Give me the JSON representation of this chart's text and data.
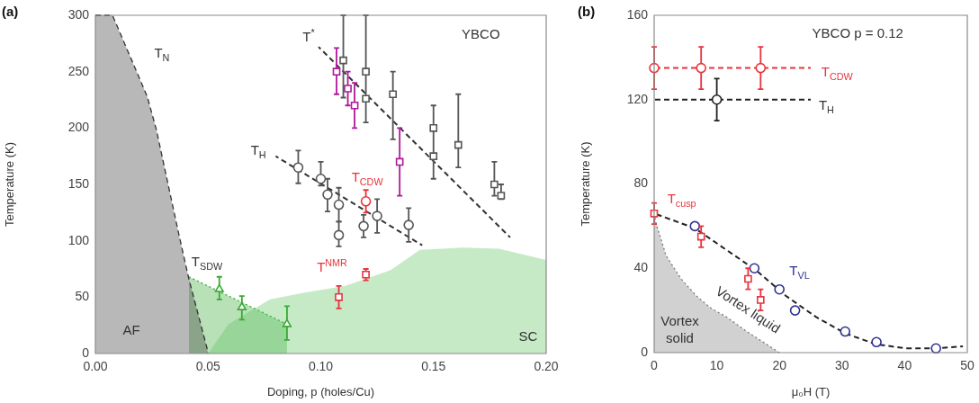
{
  "chart_data": [
    {
      "type": "scatter",
      "title": "(a)",
      "xlabel": "Doping, p (holes/Cu)",
      "ylabel": "Temperature (K)",
      "xlim": [
        0,
        0.2
      ],
      "ylim": [
        0,
        300
      ],
      "xticks": [
        {
          "value": 0,
          "label": "0.00"
        },
        {
          "value": 0.05,
          "label": "0.05"
        },
        {
          "value": 0.1,
          "label": "0.10"
        },
        {
          "value": 0.15,
          "label": "0.15"
        },
        {
          "value": 0.2,
          "label": "0.20"
        }
      ],
      "yticks": [
        0,
        50,
        100,
        150,
        200,
        250,
        300
      ],
      "series": [
        {
          "type": "area",
          "color": "#333333",
          "line_style": "dashed",
          "x": [
            0,
            0.0076,
            0.023,
            0.027,
            0.037,
            0.0415,
            0.0495,
            0.05
          ],
          "values": [
            300,
            300,
            228,
            199,
            106,
            66,
            5,
            0
          ]
        },
        {
          "type": "area",
          "color": "#5cbf5c",
          "x": [
            0.05,
            0.059,
            0.0775,
            0.093,
            0.111,
            0.131,
            0.144,
            0.163,
            0.179,
            0.2
          ],
          "values": [
            0,
            26,
            48,
            54,
            60,
            74,
            92,
            94,
            93,
            83
          ]
        },
        {
          "type": "area",
          "color": "#33aa33",
          "line_style": "dotted",
          "x": [
            0.0415,
            0.085
          ],
          "values": [
            68,
            26
          ]
        },
        {
          "type": "line",
          "color": "#333333",
          "line_style": "dashed",
          "x": [
            0.099,
            0.184
          ],
          "values": [
            272,
            103
          ]
        },
        {
          "type": "line",
          "color": "#333333",
          "line_style": "dashed",
          "x": [
            0.08,
            0.145
          ],
          "values": [
            175,
            96
          ]
        },
        {
          "type": "scatter",
          "color": "#555555",
          "marker": "square",
          "x": [
            0.11,
            0.12,
            0.12,
            0.132,
            0.15,
            0.15,
            0.161,
            0.177,
            0.18
          ],
          "values": [
            260,
            250,
            226,
            230,
            200,
            175,
            185,
            150,
            140
          ],
          "errors": [
            [
              227,
              300
            ],
            [
              205,
              300
            ],
            null,
            [
              190,
              250
            ],
            [
              155,
              220
            ],
            null,
            [
              165,
              230
            ],
            [
              140,
              170
            ],
            [
              137,
              150
            ]
          ]
        },
        {
          "type": "scatter",
          "color": "#b0189a",
          "marker": "square",
          "x": [
            0.107,
            0.112,
            0.115,
            0.135
          ],
          "values": [
            250,
            235,
            220,
            170
          ],
          "errors": [
            [
              230,
              271
            ],
            [
              220,
              250
            ],
            [
              200,
              240
            ],
            [
              140,
              200
            ]
          ]
        },
        {
          "type": "scatter",
          "color": "#555555",
          "marker": "circle",
          "x": [
            0.09,
            0.1,
            0.103,
            0.108,
            0.108,
            0.119,
            0.125,
            0.139
          ],
          "values": [
            165,
            155,
            141,
            132,
            105,
            113,
            122,
            114
          ],
          "errors": [
            [
              151,
              180
            ],
            [
              149,
              170
            ],
            [
              126,
              155
            ],
            [
              117,
              147
            ],
            [
              95,
              117
            ],
            [
              103,
              123
            ],
            [
              107,
              137
            ],
            [
              99,
              129
            ]
          ]
        },
        {
          "type": "scatter",
          "color": "#e8343c",
          "marker": "circle",
          "x": [
            0.12
          ],
          "values": [
            135
          ],
          "errors": [
            [
              125,
              145
            ]
          ]
        },
        {
          "type": "scatter",
          "color": "#e8343c",
          "marker": "square",
          "x": [
            0.108,
            0.12
          ],
          "values": [
            50,
            70
          ],
          "errors": [
            [
              40,
              60
            ],
            [
              65,
              75
            ]
          ]
        },
        {
          "type": "scatter",
          "color": "#3aaa35",
          "marker": "triangle",
          "x": [
            0.055,
            0.065,
            0.085
          ],
          "values": [
            57,
            41,
            26
          ],
          "errors": [
            [
              48,
              68
            ],
            [
              30,
              51
            ],
            [
              12,
              42
            ]
          ]
        }
      ],
      "annotations": [
        "T$_{N}$",
        "T$^{*}$",
        "T$_{H}$",
        "T$_{CDW}$",
        "T$^{NMR}$",
        "T$_{SDW}$",
        "YBCO",
        "AF",
        "SC"
      ]
    },
    {
      "type": "scatter",
      "title": "(b)",
      "xlabel": "μ₀H (T)",
      "ylabel": "Temperature (K)",
      "xlim": [
        0,
        50
      ],
      "ylim": [
        0,
        160
      ],
      "xticks": [
        0,
        10,
        20,
        30,
        40,
        50
      ],
      "yticks": [
        0,
        40,
        80,
        120,
        160
      ],
      "series": [
        {
          "type": "area",
          "color": "#7a7a7a",
          "line_style": "dotted",
          "x": [
            0,
            0.24,
            1.9,
            4.3,
            6.7,
            9.1,
            11.5,
            14.8,
            20
          ],
          "values": [
            66,
            62,
            46,
            35,
            27,
            21,
            17,
            10,
            0
          ]
        },
        {
          "type": "line",
          "color": "#e8343c",
          "line_style": "dashed",
          "x": [
            0,
            25
          ],
          "values": [
            135,
            135
          ]
        },
        {
          "type": "line",
          "color": "#222222",
          "line_style": "dashed",
          "x": [
            0,
            25
          ],
          "values": [
            120,
            120
          ]
        },
        {
          "type": "line",
          "color": "#222222",
          "line_style": "dashed",
          "x": [
            0,
            6.5,
            16.3,
            21,
            25.8,
            30.6,
            35.4,
            40.2,
            45,
            49.3
          ],
          "values": [
            66,
            59,
            39,
            27,
            17,
            9,
            4,
            2,
            2,
            3
          ]
        },
        {
          "type": "scatter",
          "color": "#e8343c",
          "marker": "circle",
          "x": [
            0,
            7.5,
            17
          ],
          "values": [
            135,
            135,
            135
          ],
          "errors": [
            10,
            10,
            10
          ]
        },
        {
          "type": "scatter",
          "color": "#222222",
          "marker": "circle",
          "x": [
            10
          ],
          "values": [
            120
          ],
          "errors": [
            10
          ]
        },
        {
          "type": "scatter",
          "color": "#e8343c",
          "marker": "square",
          "x": [
            0,
            7.5,
            15,
            17
          ],
          "values": [
            66,
            55,
            35,
            25
          ],
          "errors": [
            5,
            5,
            5,
            5
          ]
        },
        {
          "type": "scatter",
          "color": "#2e3192",
          "marker": "circle",
          "x": [
            6.5,
            16,
            20,
            22.5,
            30.5,
            35.5,
            45
          ],
          "values": [
            60,
            40,
            30,
            20,
            10,
            5,
            2
          ]
        }
      ],
      "annotations": [
        "YBCO p = 0.12",
        "T$_{CDW}$",
        "T$_{H}$",
        "T$_{cusp}$",
        "T$_{VL}$",
        "Vortex liquid",
        "Vortex\nsolid"
      ]
    }
  ]
}
